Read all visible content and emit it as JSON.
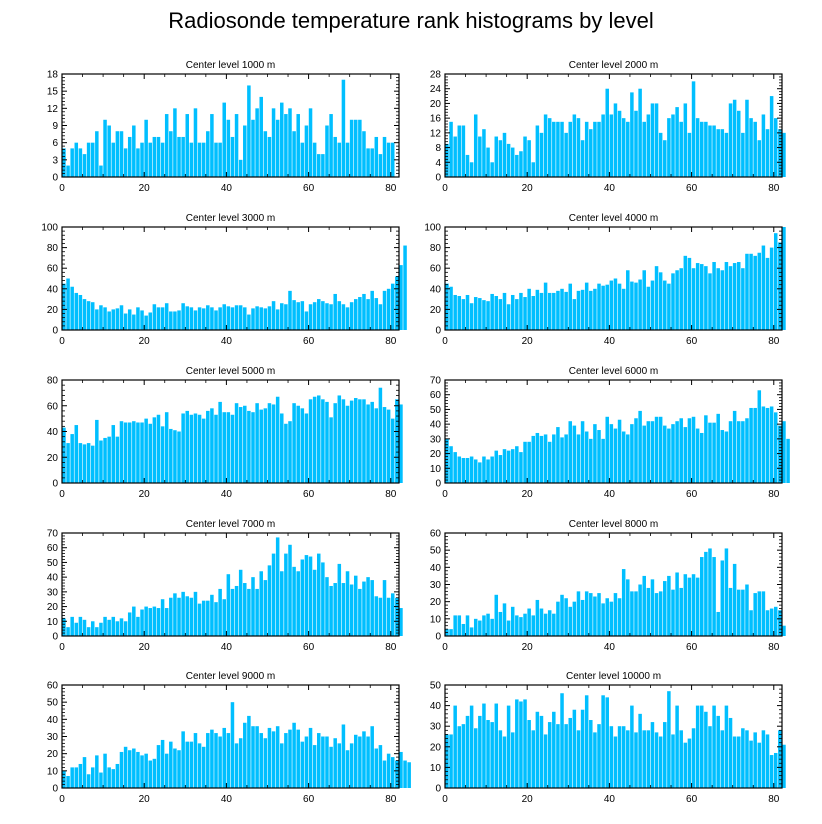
{
  "title": "Radiosonde temperature rank histograms by level",
  "bar_color": "#00BFFF",
  "chart_data": [
    {
      "type": "bar",
      "title": "Center level 1000 m",
      "xlabel": "",
      "ylabel": "",
      "xlim": [
        0,
        82
      ],
      "ylim": [
        0,
        18
      ],
      "xticks": [
        0,
        20,
        40,
        60,
        80
      ],
      "yticks": [
        0,
        3,
        6,
        9,
        12,
        15,
        18
      ],
      "values": [
        5,
        2,
        5,
        6,
        5,
        4,
        6,
        6,
        8,
        2,
        10,
        9,
        6,
        8,
        8,
        5,
        7,
        9,
        5,
        6,
        10,
        6,
        7,
        7,
        6,
        11,
        8,
        12,
        7,
        7,
        11,
        6,
        12,
        6,
        6,
        8,
        11,
        6,
        6,
        13,
        10,
        7,
        11,
        3,
        9,
        16,
        10,
        12,
        14,
        8,
        7,
        12,
        10,
        13,
        11,
        12,
        8,
        11,
        6,
        9,
        12,
        6,
        4,
        4,
        9,
        11,
        7,
        6,
        17,
        6,
        10,
        10,
        10,
        8,
        5,
        5,
        7,
        4,
        7,
        6,
        6
      ]
    },
    {
      "type": "bar",
      "title": "Center level 2000 m",
      "xlabel": "",
      "ylabel": "",
      "xlim": [
        0,
        82
      ],
      "ylim": [
        0,
        28
      ],
      "xticks": [
        0,
        20,
        40,
        60,
        80
      ],
      "yticks": [
        0,
        4,
        8,
        12,
        16,
        20,
        24,
        28
      ],
      "values": [
        9,
        15,
        11,
        14,
        14,
        6,
        4,
        17,
        11,
        13,
        8,
        4,
        11,
        10,
        12,
        9,
        8,
        6,
        7,
        11,
        10,
        4,
        14,
        12,
        17,
        16,
        15,
        15,
        15,
        12,
        15,
        17,
        16,
        10,
        15,
        13,
        15,
        15,
        17,
        24,
        17,
        20,
        18,
        16,
        15,
        23,
        18,
        24,
        15,
        17,
        20,
        20,
        12,
        10,
        16,
        17,
        19,
        15,
        20,
        12,
        26,
        16,
        15,
        15,
        14,
        14,
        13,
        13,
        12,
        20,
        21,
        18,
        12,
        21,
        16,
        15,
        10,
        17,
        13,
        22,
        16,
        13,
        12
      ]
    },
    {
      "type": "bar",
      "title": "Center level 3000 m",
      "xlabel": "",
      "ylabel": "",
      "xlim": [
        0,
        82
      ],
      "ylim": [
        0,
        100
      ],
      "xticks": [
        0,
        20,
        40,
        60,
        80
      ],
      "yticks": [
        0,
        20,
        40,
        60,
        80,
        100
      ],
      "values": [
        45,
        50,
        42,
        36,
        34,
        30,
        28,
        27,
        20,
        24,
        22,
        18,
        20,
        21,
        24,
        16,
        20,
        15,
        22,
        19,
        14,
        17,
        25,
        22,
        22,
        26,
        18,
        18,
        19,
        26,
        23,
        22,
        19,
        22,
        21,
        24,
        22,
        19,
        22,
        25,
        23,
        22,
        24,
        24,
        22,
        15,
        21,
        23,
        22,
        21,
        23,
        28,
        20,
        26,
        25,
        38,
        29,
        27,
        28,
        18,
        25,
        27,
        30,
        28,
        26,
        25,
        35,
        28,
        25,
        22,
        27,
        30,
        32,
        35,
        30,
        38,
        31,
        25,
        38,
        40,
        45,
        52,
        63,
        82
      ]
    },
    {
      "type": "bar",
      "title": "Center level 4000 m",
      "xlabel": "",
      "ylabel": "",
      "xlim": [
        0,
        82
      ],
      "ylim": [
        0,
        100
      ],
      "xticks": [
        0,
        20,
        40,
        60,
        80
      ],
      "yticks": [
        0,
        20,
        40,
        60,
        80,
        100
      ],
      "values": [
        45,
        42,
        34,
        33,
        30,
        34,
        26,
        32,
        31,
        29,
        28,
        35,
        33,
        30,
        36,
        25,
        34,
        30,
        36,
        32,
        40,
        33,
        39,
        36,
        46,
        36,
        36,
        38,
        40,
        37,
        45,
        30,
        38,
        39,
        46,
        38,
        40,
        45,
        43,
        44,
        48,
        50,
        45,
        40,
        58,
        47,
        46,
        49,
        58,
        42,
        48,
        62,
        56,
        48,
        45,
        55,
        58,
        60,
        72,
        70,
        60,
        65,
        64,
        62,
        55,
        66,
        60,
        58,
        66,
        62,
        65,
        66,
        60,
        74,
        74,
        72,
        75,
        82,
        70,
        80,
        94,
        85,
        100
      ]
    },
    {
      "type": "bar",
      "title": "Center level 5000 m",
      "xlabel": "",
      "ylabel": "",
      "xlim": [
        0,
        82
      ],
      "ylim": [
        0,
        80
      ],
      "xticks": [
        0,
        20,
        40,
        60,
        80
      ],
      "yticks": [
        0,
        20,
        40,
        60,
        80
      ],
      "values": [
        43,
        31,
        38,
        45,
        31,
        30,
        31,
        29,
        49,
        33,
        35,
        36,
        45,
        36,
        48,
        47,
        47,
        48,
        47,
        47,
        50,
        46,
        51,
        53,
        44,
        55,
        42,
        41,
        40,
        54,
        56,
        53,
        54,
        53,
        50,
        56,
        58,
        53,
        63,
        55,
        55,
        53,
        62,
        59,
        60,
        56,
        55,
        62,
        57,
        58,
        62,
        61,
        67,
        54,
        46,
        48,
        62,
        60,
        58,
        54,
        65,
        67,
        68,
        65,
        63,
        51,
        62,
        68,
        65,
        60,
        64,
        66,
        65,
        65,
        61,
        63,
        58,
        74,
        59,
        57,
        50,
        65,
        61
      ]
    },
    {
      "type": "bar",
      "title": "Center level 6000 m",
      "xlabel": "",
      "ylabel": "",
      "xlim": [
        0,
        82
      ],
      "ylim": [
        0,
        70
      ],
      "xticks": [
        0,
        20,
        40,
        60,
        80
      ],
      "yticks": [
        0,
        10,
        20,
        30,
        40,
        50,
        60,
        70
      ],
      "values": [
        30,
        25,
        21,
        18,
        17,
        17,
        18,
        16,
        14,
        18,
        16,
        18,
        22,
        19,
        23,
        22,
        23,
        25,
        21,
        28,
        28,
        32,
        34,
        32,
        33,
        28,
        33,
        38,
        31,
        33,
        42,
        39,
        33,
        42,
        35,
        30,
        40,
        36,
        30,
        45,
        40,
        37,
        43,
        35,
        33,
        40,
        44,
        49,
        39,
        42,
        42,
        45,
        45,
        39,
        37,
        40,
        42,
        44,
        38,
        44,
        45,
        37,
        34,
        46,
        41,
        41,
        47,
        36,
        35,
        42,
        49,
        42,
        42,
        44,
        51,
        51,
        63,
        52,
        51,
        52,
        48,
        39,
        42,
        30
      ]
    },
    {
      "type": "bar",
      "title": "Center level 7000 m",
      "xlabel": "",
      "ylabel": "",
      "xlim": [
        0,
        82
      ],
      "ylim": [
        0,
        70
      ],
      "xticks": [
        0,
        20,
        40,
        60,
        80
      ],
      "yticks": [
        0,
        10,
        20,
        30,
        40,
        50,
        60,
        70
      ],
      "values": [
        12,
        6,
        13,
        9,
        13,
        11,
        6,
        10,
        6,
        9,
        13,
        11,
        13,
        10,
        12,
        10,
        16,
        20,
        13,
        18,
        20,
        19,
        20,
        19,
        25,
        19,
        26,
        29,
        26,
        30,
        27,
        26,
        30,
        22,
        24,
        24,
        28,
        23,
        32,
        25,
        42,
        32,
        34,
        45,
        36,
        32,
        40,
        32,
        44,
        38,
        48,
        56,
        67,
        44,
        56,
        62,
        47,
        44,
        52,
        55,
        54,
        45,
        56,
        50,
        40,
        34,
        36,
        49,
        36,
        44,
        35,
        41,
        32,
        37,
        40,
        38,
        27,
        26,
        38,
        26,
        29,
        26,
        19
      ]
    },
    {
      "type": "bar",
      "title": "Center level 8000 m",
      "xlabel": "",
      "ylabel": "",
      "xlim": [
        0,
        82
      ],
      "ylim": [
        0,
        60
      ],
      "xticks": [
        0,
        20,
        40,
        60,
        80
      ],
      "yticks": [
        0,
        10,
        20,
        30,
        40,
        50,
        60
      ],
      "values": [
        4,
        4,
        12,
        12,
        7,
        12,
        5,
        10,
        9,
        12,
        13,
        10,
        24,
        14,
        19,
        9,
        17,
        12,
        11,
        13,
        16,
        12,
        21,
        16,
        13,
        15,
        13,
        20,
        24,
        22,
        17,
        20,
        26,
        21,
        26,
        25,
        23,
        25,
        19,
        22,
        20,
        25,
        22,
        39,
        33,
        26,
        26,
        30,
        35,
        28,
        33,
        25,
        26,
        32,
        35,
        27,
        37,
        28,
        36,
        34,
        36,
        34,
        46,
        49,
        51,
        46,
        14,
        44,
        51,
        28,
        42,
        27,
        27,
        30,
        15,
        25,
        26,
        26,
        15,
        16,
        17,
        15,
        6
      ]
    },
    {
      "type": "bar",
      "title": "Center level 9000 m",
      "xlabel": "",
      "ylabel": "",
      "xlim": [
        0,
        82
      ],
      "ylim": [
        0,
        60
      ],
      "xticks": [
        0,
        20,
        40,
        60,
        80
      ],
      "yticks": [
        0,
        10,
        20,
        30,
        40,
        50,
        60
      ],
      "values": [
        10,
        7,
        12,
        12,
        14,
        18,
        8,
        12,
        19,
        9,
        20,
        12,
        11,
        14,
        21,
        24,
        22,
        23,
        21,
        19,
        20,
        16,
        17,
        25,
        28,
        20,
        27,
        23,
        22,
        33,
        27,
        27,
        32,
        26,
        24,
        32,
        34,
        32,
        30,
        35,
        32,
        50,
        26,
        29,
        38,
        42,
        36,
        36,
        32,
        29,
        35,
        33,
        36,
        26,
        32,
        34,
        38,
        34,
        27,
        30,
        35,
        25,
        32,
        30,
        30,
        24,
        29,
        26,
        37,
        22,
        26,
        31,
        30,
        33,
        30,
        36,
        23,
        25,
        16,
        20,
        18,
        16,
        21,
        16,
        15
      ]
    },
    {
      "type": "bar",
      "title": "Center level 10000 m",
      "xlabel": "",
      "ylabel": "",
      "xlim": [
        0,
        82
      ],
      "ylim": [
        0,
        50
      ],
      "xticks": [
        0,
        20,
        40,
        60,
        80
      ],
      "yticks": [
        0,
        10,
        20,
        30,
        40,
        50
      ],
      "values": [
        26,
        26,
        40,
        30,
        31,
        35,
        40,
        29,
        35,
        41,
        33,
        32,
        41,
        28,
        25,
        40,
        27,
        43,
        42,
        43,
        33,
        28,
        37,
        35,
        26,
        32,
        37,
        31,
        46,
        31,
        34,
        38,
        28,
        38,
        45,
        33,
        27,
        31,
        45,
        44,
        30,
        25,
        30,
        30,
        28,
        40,
        27,
        36,
        28,
        28,
        32,
        27,
        25,
        32,
        47,
        26,
        40,
        28,
        22,
        24,
        29,
        40,
        40,
        37,
        30,
        40,
        35,
        28,
        40,
        34,
        25,
        25,
        29,
        28,
        23,
        27,
        22,
        28,
        26,
        16,
        17,
        28,
        21
      ]
    }
  ]
}
